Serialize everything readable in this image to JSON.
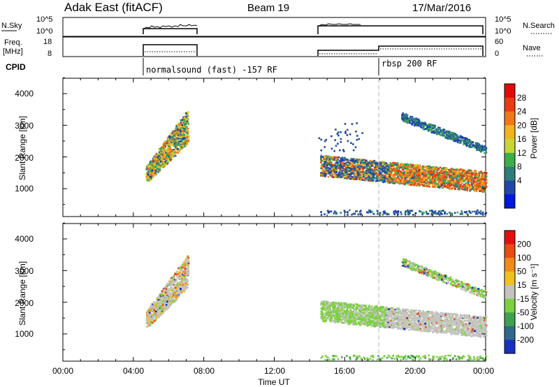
{
  "header": {
    "station": "Adak East (fitACF)",
    "beam": "Beam 19",
    "date": "17/Mar/2016"
  },
  "top_panels": {
    "nsky_label": "N.Sky",
    "nsky_ticks": [
      "10^5",
      "10^0"
    ],
    "nsearch_label": "N.Search",
    "nsearch_ticks": [
      "10^5",
      "10^0"
    ],
    "freq_label_1": "Freq.",
    "freq_label_2": "[MHz]",
    "freq_ticks": [
      "18",
      "8"
    ],
    "nave_label": "Nave",
    "nave_ticks": [
      "60",
      "0"
    ],
    "cpid_label": "CPID",
    "cpid_mode_1": "normalsound (fast) -157 RF",
    "cpid_mode_2": "rbsp 200 RF"
  },
  "power_panel": {
    "ylabel": "Slant Range [km]",
    "yticks": [
      "4000",
      "3000",
      "2000",
      "1000"
    ],
    "colorbar_label": "Power [dB]",
    "colorbar_ticks": [
      "28",
      "24",
      "20",
      "16",
      "12",
      "8",
      "4"
    ],
    "colors": [
      "#0018e0",
      "#2247a8",
      "#2f7d78",
      "#3cae4a",
      "#c7d634",
      "#f0b41e",
      "#f07818",
      "#ea3a14",
      "#e00a0a"
    ]
  },
  "velocity_panel": {
    "ylabel": "Slant Range [km]",
    "yticks": [
      "4000",
      "3000",
      "2000",
      "1000"
    ],
    "colorbar_label": "Velocity [m s⁻¹]",
    "colorbar_ticks": [
      "200",
      "100",
      "50",
      "15",
      "-15",
      "-50",
      "-100",
      "-200"
    ],
    "colors": [
      "#1830c0",
      "#2f6a8a",
      "#3fa050",
      "#7cd040",
      "#c4c4be",
      "#f0c020",
      "#f08a18",
      "#ea4a14",
      "#e01010"
    ]
  },
  "xaxis": {
    "label": "Time UT",
    "ticks": [
      "00:00",
      "04:00",
      "08:00",
      "12:00",
      "16:00",
      "20:00",
      "00:00"
    ]
  },
  "chart_data": {
    "type": "heatmap",
    "x_range_hours": [
      0,
      24
    ],
    "y_range_km": [
      180,
      4600
    ],
    "cpid_switch_hour": 18,
    "power_blobs": [
      {
        "t0": 4.7,
        "t1": 7.1,
        "r0": 1300,
        "r1": 3500,
        "level": "16-24 dB"
      },
      {
        "t0": 14.6,
        "t1": 24,
        "r0": 1000,
        "r1": 2000,
        "level": "12-28 dB"
      },
      {
        "t0": 19.4,
        "t1": 23.8,
        "r0": 2100,
        "r1": 3400,
        "level": "4-12 dB"
      }
    ],
    "velocity_blobs": [
      {
        "t0": 4.7,
        "t1": 7.1,
        "r0": 1300,
        "r1": 3500,
        "level": "-15 to 15 m/s"
      },
      {
        "t0": 14.6,
        "t1": 24,
        "r0": 1000,
        "r1": 2100,
        "level": "-15 to 15 m/s"
      }
    ]
  }
}
